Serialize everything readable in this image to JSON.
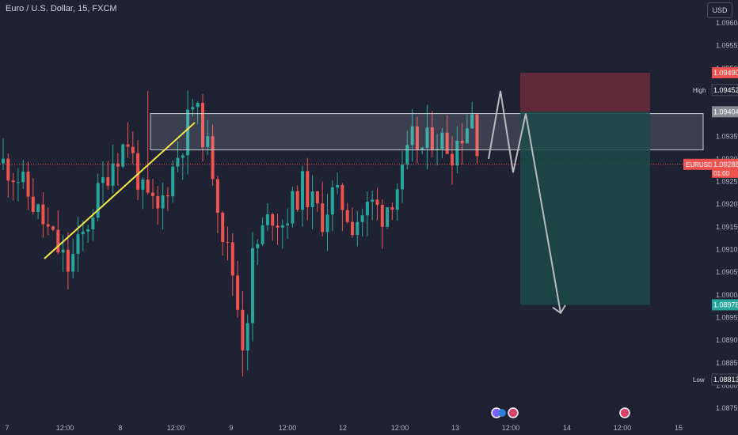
{
  "header": {
    "symbol_title": "Euro / U.S. Dollar, 15, FXCM",
    "currency_button": "USD"
  },
  "colors": {
    "background": "#1e2233",
    "bull": "#26a69a",
    "bear": "#ef5350",
    "trendline": "#f5e94a",
    "zone": "#c8cad0",
    "stop_zone": "#6b2a3a",
    "target_zone": "#1c4a4a",
    "projection": "#b8bac0"
  },
  "chart_data": {
    "type": "candlestick",
    "title": "Euro / U.S. Dollar, 15, FXCM",
    "xlabel": "",
    "ylabel": "",
    "ylim": [
      1.0874,
      1.0965
    ],
    "y_ticks": [
      "1.09600",
      "1.09550",
      "1.09500",
      "1.09450",
      "1.09400",
      "1.09350",
      "1.09300",
      "1.09250",
      "1.09200",
      "1.09150",
      "1.09100",
      "1.09050",
      "1.09000",
      "1.08950",
      "1.08900",
      "1.08850",
      "1.08800",
      "1.08750"
    ],
    "x_tick_labels": [
      "7",
      "12:00",
      "8",
      "12:00",
      "9",
      "12:00",
      "12",
      "12:00",
      "13",
      "12:00",
      "14",
      "12:00",
      "15"
    ],
    "grid": false,
    "series": [
      {
        "name": "EURUSD",
        "path": [
          [
            0,
            1.0929
          ],
          [
            3,
            1.0926
          ],
          [
            7,
            1.0918
          ],
          [
            10,
            1.0912
          ],
          [
            13,
            1.0906
          ],
          [
            16,
            1.0913
          ],
          [
            19,
            1.0922
          ],
          [
            22,
            1.093
          ],
          [
            25,
            1.0934
          ],
          [
            28,
            1.0922
          ],
          [
            31,
            1.0918
          ],
          [
            34,
            1.0928
          ],
          [
            36,
            1.0934
          ],
          [
            38,
            1.0942
          ],
          [
            40,
            1.0936
          ],
          [
            42,
            1.0928
          ],
          [
            44,
            1.0914
          ],
          [
            46,
            1.0905
          ],
          [
            48,
            1.089
          ],
          [
            49,
            1.0896
          ],
          [
            50,
            1.0908
          ],
          [
            52,
            1.0914
          ],
          [
            54,
            1.0918
          ],
          [
            56,
            1.0916
          ],
          [
            58,
            1.092
          ],
          [
            60,
            1.0924
          ],
          [
            62,
            1.092
          ],
          [
            64,
            1.0917
          ],
          [
            66,
            1.0922
          ],
          [
            68,
            1.092
          ],
          [
            70,
            1.0916
          ],
          [
            72,
            1.0918
          ],
          [
            74,
            1.092
          ],
          [
            76,
            1.0918
          ],
          [
            78,
            1.0922
          ],
          [
            80,
            1.0926
          ],
          [
            82,
            1.0934
          ],
          [
            84,
            1.0932
          ],
          [
            86,
            1.0935
          ],
          [
            88,
            1.0934
          ],
          [
            90,
            1.0932
          ],
          [
            92,
            1.0936
          ],
          [
            94,
            1.094
          ],
          [
            95,
            1.0934
          ],
          [
            96,
            1.0929
          ]
        ]
      }
    ],
    "price_levels": [
      {
        "label": "",
        "value": "1.09490"
      },
      {
        "label": "High",
        "value": "1.09452"
      },
      {
        "label": "",
        "value": "1.09404"
      },
      {
        "label": "EURUSD",
        "value": "1.09288",
        "sub": "01:00"
      },
      {
        "label": "",
        "value": "1.08978"
      },
      {
        "label": "Low",
        "value": "1.08813"
      }
    ],
    "resistance_zone": {
      "from": 1.0932,
      "to": 1.094
    },
    "trendline": {
      "start": 1.0908,
      "end": 1.0938
    },
    "short_position": {
      "entry": 1.09404,
      "stop": 1.0949,
      "target": 1.08978
    },
    "projection_path": [
      1.093,
      1.0945,
      1.0927,
      1.094,
      1.0896
    ]
  }
}
